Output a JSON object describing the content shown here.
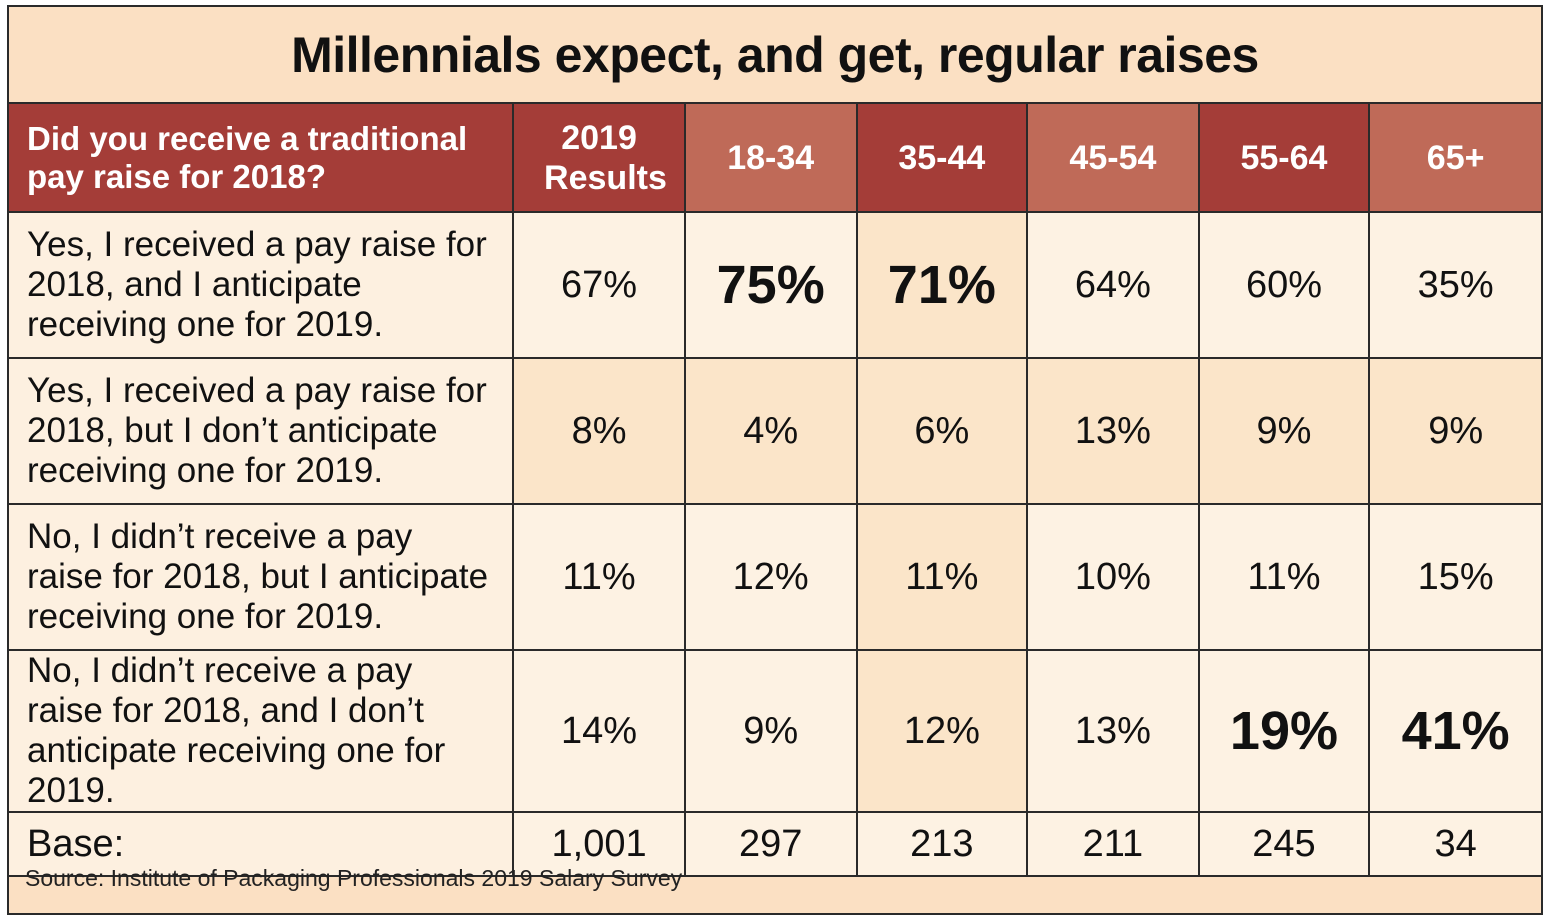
{
  "title": "Millennials expect, and get, regular raises",
  "chart_data": {
    "type": "table",
    "title": "Millennials expect, and get, regular raises",
    "question": "Did you receive a traditional pay raise for 2018?",
    "columns": [
      "2019 Results",
      "18-34",
      "35-44",
      "45-54",
      "55-64",
      "65+"
    ],
    "rows": [
      {
        "label": "Yes, I received a pay raise for 2018, and I anticipate receiving one for 2019.",
        "values": [
          "67%",
          "75%",
          "71%",
          "64%",
          "60%",
          "35%"
        ],
        "highlight": [
          false,
          true,
          true,
          false,
          false,
          false
        ]
      },
      {
        "label": "Yes, I received a pay raise for 2018, but I don’t anticipate receiving one for 2019.",
        "values": [
          "8%",
          "4%",
          "6%",
          "13%",
          "9%",
          "9%"
        ],
        "highlight": [
          false,
          false,
          false,
          false,
          false,
          false
        ]
      },
      {
        "label": "No, I didn’t receive a pay raise for 2018, but I anticipate receiving one for 2019.",
        "values": [
          "11%",
          "12%",
          "11%",
          "10%",
          "11%",
          "15%"
        ],
        "highlight": [
          false,
          false,
          false,
          false,
          false,
          false
        ]
      },
      {
        "label": "No, I didn’t receive a pay raise for 2018, and I don’t anticipate receiving one for 2019.",
        "values": [
          "14%",
          "9%",
          "12%",
          "13%",
          "19%",
          "41%"
        ],
        "highlight": [
          false,
          false,
          false,
          false,
          true,
          true
        ]
      }
    ],
    "base": {
      "label": "Base:",
      "values": [
        "1,001",
        "297",
        "213",
        "211",
        "245",
        "34"
      ]
    }
  },
  "source": "Source: Institute of Packaging Professionals 2019 Salary Survey",
  "colors": {
    "header_dark": "#a43d38",
    "header_light": "#bf6a58",
    "title_band": "#fbe0c3",
    "cell_light": "#fdf2e3",
    "cell_mid": "#fbe5c9"
  }
}
